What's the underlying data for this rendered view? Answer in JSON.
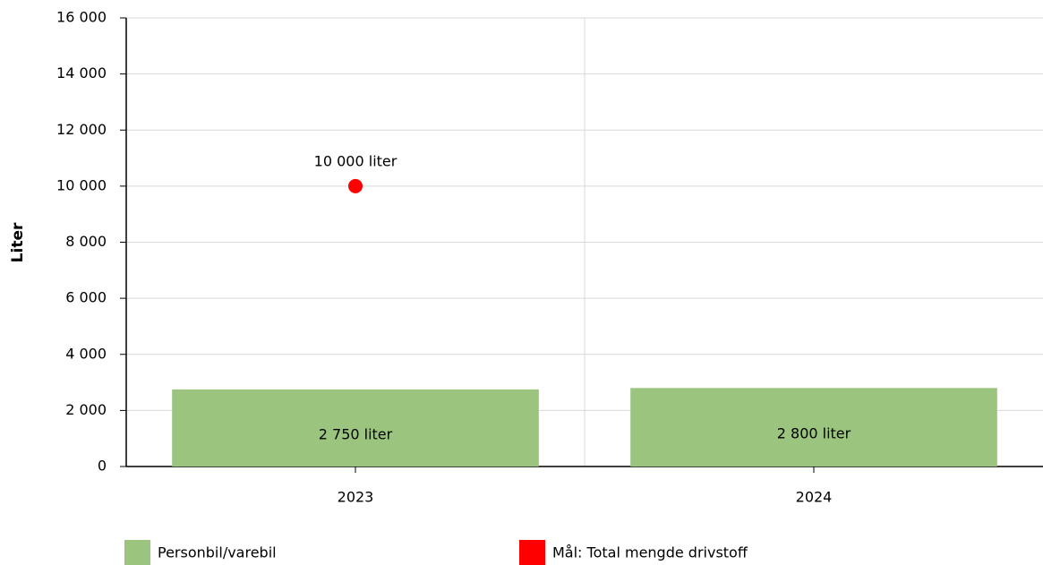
{
  "chart_data": {
    "type": "bar",
    "y_label": "Liter",
    "categories": [
      "2023",
      "2024"
    ],
    "series": [
      {
        "name": "Personbil/varebil",
        "type": "bar",
        "color": "#9bc47e",
        "values": [
          2750,
          2800
        ],
        "value_labels": [
          "2 750 liter",
          "2 800 liter"
        ]
      },
      {
        "name": "Mål: Total mengde drivstoff",
        "type": "point",
        "color": "#ff0000",
        "values": [
          10000,
          null
        ],
        "value_labels": [
          "10 000 liter",
          null
        ]
      }
    ],
    "ylim": [
      0,
      16000
    ],
    "yticks": [
      0,
      {
        "value": 2000,
        "label": "2 000"
      },
      {
        "value": 4000,
        "label": "4 000"
      },
      {
        "value": 6000,
        "label": "6 000"
      },
      {
        "value": 8000,
        "label": "8 000"
      },
      {
        "value": 10000,
        "label": "10 000"
      },
      {
        "value": 12000,
        "label": "12 000"
      },
      {
        "value": 14000,
        "label": "14 000"
      },
      {
        "value": 16000,
        "label": "16 000"
      }
    ],
    "grid": true,
    "legend": "bottom"
  }
}
